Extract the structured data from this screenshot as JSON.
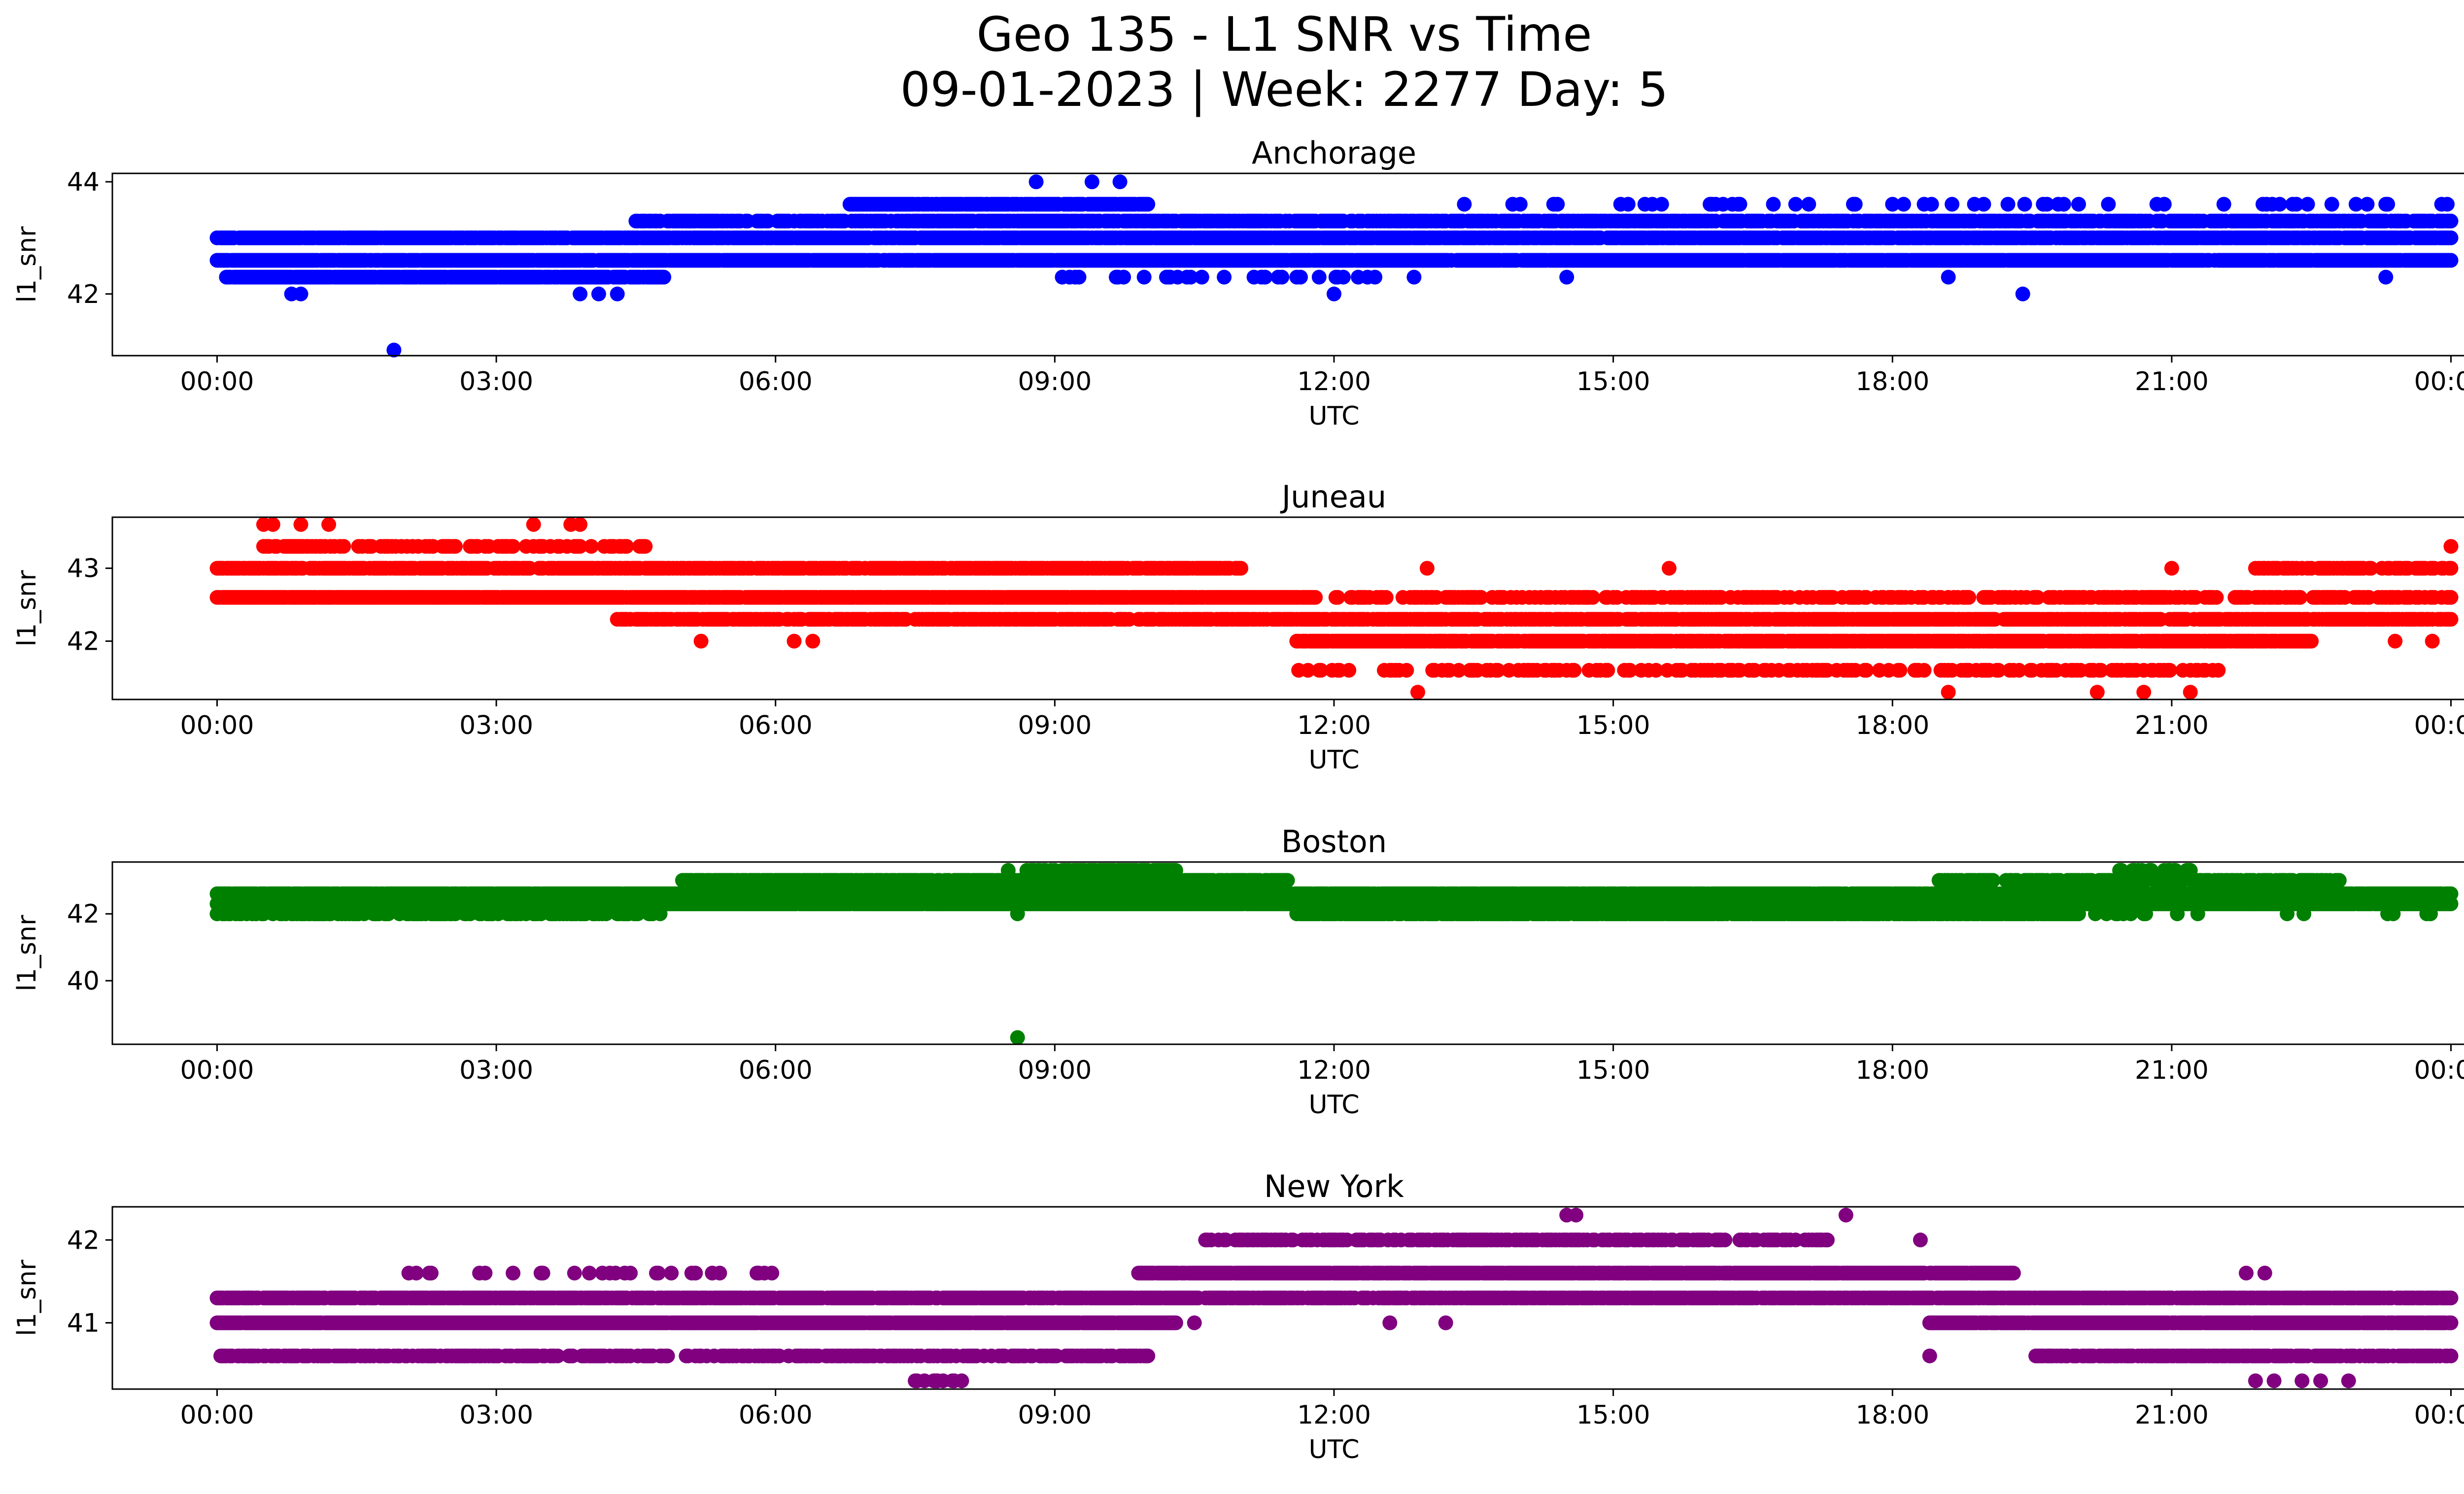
{
  "figure": {
    "title_line1": "Geo 135 - L1 SNR vs Time",
    "title_line2": "09-01-2023 | Week: 2277 Day: 5"
  },
  "chart_data": [
    {
      "type": "scatter",
      "title": "Anchorage",
      "xlabel": "UTC",
      "ylabel": "l1_snr",
      "color": "#0000ff",
      "xticks": [
        "00:00",
        "03:00",
        "06:00",
        "09:00",
        "12:00",
        "15:00",
        "18:00",
        "21:00",
        "00:00"
      ],
      "yticks": [
        42,
        44
      ],
      "xlim_hours": [
        -1.125,
        25.125
      ],
      "ylim": [
        40.9,
        44.15
      ],
      "bands": [
        {
          "y": 42.3,
          "start": 0.1,
          "end": 4.8,
          "dense": 0.92
        },
        {
          "y": 42.6,
          "start": 0.0,
          "end": 24.0,
          "dense": 0.95
        },
        {
          "y": 43.0,
          "start": 0.0,
          "end": 24.0,
          "dense": 0.9
        },
        {
          "y": 43.3,
          "start": 4.5,
          "end": 24.0,
          "dense": 0.75
        },
        {
          "y": 43.6,
          "start": 6.8,
          "end": 10.0,
          "dense": 0.9
        },
        {
          "y": 43.6,
          "start": 13.3,
          "end": 24.0,
          "dense": 0.08
        },
        {
          "y": 42.3,
          "start": 9.0,
          "end": 13.0,
          "dense": 0.15
        }
      ],
      "outliers": [
        [
          1.9,
          41.0
        ],
        [
          0.8,
          42.0
        ],
        [
          0.9,
          42.0
        ],
        [
          3.9,
          42.0
        ],
        [
          4.1,
          42.0
        ],
        [
          4.3,
          42.0
        ],
        [
          12.0,
          42.0
        ],
        [
          19.4,
          42.0
        ],
        [
          8.8,
          44.0
        ],
        [
          9.4,
          44.0
        ],
        [
          9.7,
          44.0
        ],
        [
          14.5,
          42.3
        ],
        [
          18.6,
          42.3
        ],
        [
          23.3,
          42.3
        ]
      ]
    },
    {
      "type": "scatter",
      "title": "Juneau",
      "xlabel": "UTC",
      "ylabel": "l1_snr",
      "color": "#ff0000",
      "xticks": [
        "00:00",
        "03:00",
        "06:00",
        "09:00",
        "12:00",
        "15:00",
        "18:00",
        "21:00",
        "00:00"
      ],
      "yticks": [
        42,
        43
      ],
      "xlim_hours": [
        -1.125,
        25.125
      ],
      "ylim": [
        41.2,
        43.7
      ],
      "bands": [
        {
          "y": 42.6,
          "start": 0.0,
          "end": 11.8,
          "dense": 0.95
        },
        {
          "y": 43.0,
          "start": 0.0,
          "end": 11.0,
          "dense": 0.8
        },
        {
          "y": 43.3,
          "start": 0.4,
          "end": 4.6,
          "dense": 0.45
        },
        {
          "y": 42.3,
          "start": 4.3,
          "end": 24.0,
          "dense": 0.75
        },
        {
          "y": 42.0,
          "start": 11.6,
          "end": 22.5,
          "dense": 0.85
        },
        {
          "y": 41.6,
          "start": 11.6,
          "end": 21.5,
          "dense": 0.35
        },
        {
          "y": 42.6,
          "start": 12.0,
          "end": 24.0,
          "dense": 0.5
        },
        {
          "y": 43.0,
          "start": 21.9,
          "end": 24.0,
          "dense": 0.6
        }
      ],
      "outliers": [
        [
          0.5,
          43.6
        ],
        [
          0.6,
          43.6
        ],
        [
          0.9,
          43.6
        ],
        [
          1.2,
          43.6
        ],
        [
          3.4,
          43.6
        ],
        [
          3.8,
          43.6
        ],
        [
          3.9,
          43.6
        ],
        [
          5.2,
          42.0
        ],
        [
          6.2,
          42.0
        ],
        [
          6.4,
          42.0
        ],
        [
          12.9,
          41.3
        ],
        [
          18.6,
          41.3
        ],
        [
          20.2,
          41.3
        ],
        [
          20.7,
          41.3
        ],
        [
          21.2,
          41.3
        ],
        [
          13.0,
          43.0
        ],
        [
          15.6,
          43.0
        ],
        [
          21.0,
          43.0
        ],
        [
          24.0,
          43.3
        ],
        [
          18.6,
          42.6
        ],
        [
          23.4,
          42.0
        ],
        [
          23.8,
          42.0
        ]
      ]
    },
    {
      "type": "scatter",
      "title": "Boston",
      "xlabel": "UTC",
      "ylabel": "l1_snr",
      "color": "#008000",
      "xticks": [
        "00:00",
        "03:00",
        "06:00",
        "09:00",
        "12:00",
        "15:00",
        "18:00",
        "21:00",
        "00:00"
      ],
      "yticks": [
        40,
        42
      ],
      "xlim_hours": [
        -1.125,
        25.125
      ],
      "ylim": [
        38.1,
        43.55
      ],
      "bands": [
        {
          "y": 42.3,
          "start": 0.0,
          "end": 24.0,
          "dense": 0.98
        },
        {
          "y": 42.6,
          "start": 0.0,
          "end": 24.0,
          "dense": 0.9
        },
        {
          "y": 42.0,
          "start": 0.0,
          "end": 4.8,
          "dense": 0.5
        },
        {
          "y": 42.0,
          "start": 11.6,
          "end": 20.0,
          "dense": 0.85
        },
        {
          "y": 42.0,
          "start": 20.0,
          "end": 24.0,
          "dense": 0.1
        },
        {
          "y": 43.0,
          "start": 5.0,
          "end": 11.5,
          "dense": 0.85
        },
        {
          "y": 43.0,
          "start": 18.5,
          "end": 22.8,
          "dense": 0.65
        },
        {
          "y": 43.3,
          "start": 8.7,
          "end": 10.3,
          "dense": 0.7
        },
        {
          "y": 43.3,
          "start": 20.4,
          "end": 21.2,
          "dense": 0.4
        }
      ],
      "outliers": [
        [
          8.6,
          38.3
        ],
        [
          8.6,
          42.0
        ],
        [
          8.5,
          43.3
        ]
      ]
    },
    {
      "type": "scatter",
      "title": "New York",
      "xlabel": "UTC",
      "ylabel": "l1_snr",
      "color": "#800080",
      "xticks": [
        "00:00",
        "03:00",
        "06:00",
        "09:00",
        "12:00",
        "15:00",
        "18:00",
        "21:00",
        "00:00"
      ],
      "yticks": [
        41,
        42
      ],
      "xlim_hours": [
        -1.125,
        25.125
      ],
      "ylim": [
        40.2,
        42.4
      ],
      "bands": [
        {
          "y": 41.0,
          "start": 0.0,
          "end": 10.3,
          "dense": 0.98
        },
        {
          "y": 41.0,
          "start": 18.4,
          "end": 24.0,
          "dense": 0.95
        },
        {
          "y": 41.3,
          "start": 0.0,
          "end": 24.0,
          "dense": 0.85
        },
        {
          "y": 40.6,
          "start": 0.0,
          "end": 10.0,
          "dense": 0.55
        },
        {
          "y": 40.6,
          "start": 19.5,
          "end": 24.0,
          "dense": 0.7
        },
        {
          "y": 41.6,
          "start": 2.0,
          "end": 6.0,
          "dense": 0.15
        },
        {
          "y": 41.6,
          "start": 9.9,
          "end": 19.3,
          "dense": 0.95
        },
        {
          "y": 42.0,
          "start": 10.6,
          "end": 17.3,
          "dense": 0.55
        },
        {
          "y": 40.3,
          "start": 7.5,
          "end": 8.0,
          "dense": 0.3
        }
      ],
      "outliers": [
        [
          14.5,
          42.3
        ],
        [
          14.6,
          42.3
        ],
        [
          17.5,
          42.3
        ],
        [
          18.3,
          42.0
        ],
        [
          18.4,
          40.6
        ],
        [
          21.8,
          41.6
        ],
        [
          22.0,
          41.6
        ],
        [
          21.9,
          40.3
        ],
        [
          22.1,
          40.3
        ],
        [
          22.4,
          40.3
        ],
        [
          22.6,
          40.3
        ],
        [
          22.9,
          40.3
        ],
        [
          10.0,
          41.0
        ],
        [
          10.5,
          41.0
        ],
        [
          12.6,
          41.0
        ],
        [
          13.2,
          41.0
        ]
      ]
    }
  ]
}
